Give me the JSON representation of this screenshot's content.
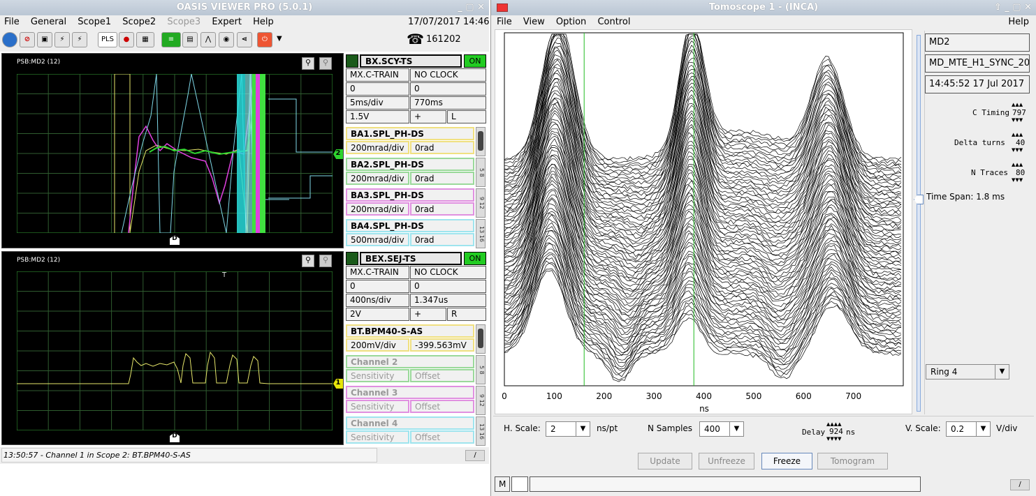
{
  "left": {
    "title": "OASIS VIEWER PRO (5.0.1)",
    "datetime": "17/07/2017 14:46",
    "phone": "161202",
    "menu": [
      "File",
      "General",
      "Scope1",
      "Scope2",
      "Scope3",
      "Expert",
      "Help"
    ],
    "toolbar": {
      "pls": "PLS"
    },
    "scope1": {
      "label": "PSB:MD2 (12)",
      "marker": "2",
      "cursor": "D",
      "hdr": {
        "name": "BX.SCY-TS",
        "state": "ON"
      },
      "rows": [
        [
          "MX.C-TRAIN",
          "NO CLOCK"
        ],
        [
          "0",
          "0"
        ],
        [
          "5ms/div",
          "770ms"
        ]
      ],
      "trig": [
        "1.5V",
        "+",
        "L"
      ],
      "channels": [
        {
          "name": "BA1.SPL_PH-DS",
          "sens": "200mrad/div",
          "off": "0rad",
          "color": "#f0e080",
          "tab": ""
        },
        {
          "name": "BA2.SPL_PH-DS",
          "sens": "200mrad/div",
          "off": "0rad",
          "color": "#9ad99a",
          "tab": "5 8"
        },
        {
          "name": "BA3.SPL_PH-DS",
          "sens": "200mrad/div",
          "off": "0rad",
          "color": "#e090e0",
          "tab": "9 12"
        },
        {
          "name": "BA4.SPL_PH-DS",
          "sens": "500mrad/div",
          "off": "0rad",
          "color": "#9ee4ee",
          "tab": "13 16"
        }
      ]
    },
    "scope2": {
      "label": "PSB:MD2 (12)",
      "marker": "1",
      "cursor": "D",
      "tmark": "T",
      "hdr": {
        "name": "BEX.SEJ-TS",
        "state": "ON"
      },
      "rows": [
        [
          "MX.C-TRAIN",
          "NO CLOCK"
        ],
        [
          "0",
          "0"
        ],
        [
          "400ns/div",
          "1.347us"
        ]
      ],
      "trig": [
        "2V",
        "+",
        "R"
      ],
      "channels": [
        {
          "name": "BT.BPM40-S-AS",
          "sens": "200mV/div",
          "off": "-399.563mV",
          "color": "#f0e080",
          "tab": "",
          "active": true
        },
        {
          "name": "Channel 2",
          "sens": "Sensitivity",
          "off": "Offset",
          "color": "#9ad99a",
          "tab": "5 8",
          "active": false
        },
        {
          "name": "Channel 3",
          "sens": "Sensitivity",
          "off": "Offset",
          "color": "#e090e0",
          "tab": "9 12",
          "active": false
        },
        {
          "name": "Channel 4",
          "sens": "Sensitivity",
          "off": "Offset",
          "color": "#9ee4ee",
          "tab": "13 16",
          "active": false
        }
      ]
    },
    "status": "13:50:57 - Channel 1 in Scope 2: BT.BPM40-S-AS",
    "status_btn": "/"
  },
  "right": {
    "title": "Tomoscope 1 - (INCA)",
    "menu": [
      "File",
      "View",
      "Option",
      "Control"
    ],
    "help": "Help",
    "info": {
      "user": "MD2",
      "cycle": "MD_MTE_H1_SYNC_20...",
      "time": "14:45:52 17 Jul 2017"
    },
    "ctiming": {
      "label": "C Timing",
      "value": "797"
    },
    "delta": {
      "label": "Delta turns",
      "value": "40"
    },
    "ntraces": {
      "label": "N Traces",
      "value": "80"
    },
    "timespan": "Time Span: 1.8 ms",
    "ring": "Ring 4",
    "chart_data": {
      "type": "line",
      "xlabel": "ns",
      "xticks": [
        0,
        100,
        200,
        300,
        400,
        500,
        600,
        700
      ],
      "xlim": [
        0,
        800
      ],
      "markers_x": [
        160,
        380
      ],
      "grid": false
    },
    "hscale": {
      "label": "H. Scale:",
      "value": "2",
      "unit": "ns/pt"
    },
    "nsamples": {
      "label": "N Samples",
      "value": "400"
    },
    "delay": {
      "label": "Delay",
      "value": "924",
      "unit": "ns"
    },
    "vscale": {
      "label": "V. Scale:",
      "value": "0.2",
      "unit": "V/div"
    },
    "buttons": [
      "Update",
      "Unfreeze",
      "Freeze",
      "Tomogram"
    ],
    "status_m": "M",
    "status_btn": "/"
  }
}
